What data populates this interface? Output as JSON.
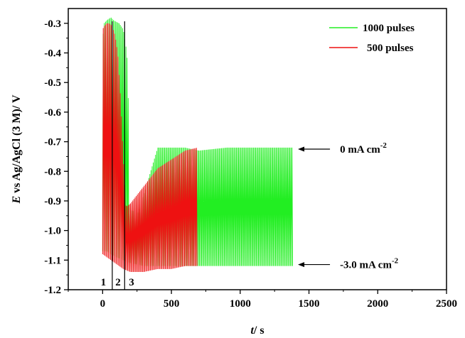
{
  "chart_data": {
    "type": "line",
    "xlabel_italic": "t",
    "xlabel_rest": "/ s",
    "ylabel_italic": "E",
    "ylabel_rest": " vs Ag/AgCl (3 M)/ V",
    "xlim": [
      -250,
      2500
    ],
    "ylim": [
      -1.2,
      -0.25
    ],
    "xticks": [
      0,
      500,
      1000,
      1500,
      2000,
      2500
    ],
    "yticks": [
      -0.3,
      -0.4,
      -0.5,
      -0.6,
      -0.7,
      -0.8,
      -0.9,
      -1.0,
      -1.1,
      -1.2
    ],
    "ytick_labels": [
      "-0.3",
      "-0.4",
      "-0.5",
      "-0.6",
      "-0.7",
      "-0.8",
      "-0.9",
      "-1.0",
      "-1.1",
      "-1.2"
    ],
    "series": [
      {
        "name": "1000 pulses",
        "color": "#22ee22",
        "upper": {
          "x": [
            0,
            10,
            30,
            60,
            80,
            120,
            150,
            170,
            185,
            190,
            200,
            260,
            400,
            600,
            700,
            900,
            1100,
            1385
          ],
          "y": [
            -0.36,
            -0.3,
            -0.29,
            -0.28,
            -0.29,
            -0.3,
            -0.32,
            -0.38,
            -0.45,
            -0.92,
            -0.93,
            -0.94,
            -0.72,
            -0.72,
            -0.73,
            -0.72,
            -0.72,
            -0.72
          ]
        },
        "lower": {
          "x": [
            0,
            30,
            60,
            100,
            150,
            200,
            300,
            500,
            700,
            1000,
            1385
          ],
          "y": [
            -1.07,
            -1.07,
            -1.08,
            -1.09,
            -1.1,
            -1.11,
            -1.12,
            -1.12,
            -1.12,
            -1.12,
            -1.12
          ]
        }
      },
      {
        "name": "500 pulses",
        "color": "#ee1111",
        "upper": {
          "x": [
            0,
            10,
            30,
            50,
            70,
            90,
            110,
            130,
            150,
            170,
            200,
            300,
            400,
            500,
            600,
            690
          ],
          "y": [
            -0.32,
            -0.31,
            -0.3,
            -0.3,
            -0.31,
            -0.34,
            -0.4,
            -0.55,
            -0.75,
            -0.92,
            -0.91,
            -0.85,
            -0.79,
            -0.76,
            -0.73,
            -0.72
          ]
        },
        "lower": {
          "x": [
            0,
            30,
            60,
            90,
            120,
            150,
            200,
            300,
            400,
            500,
            600,
            690
          ],
          "y": [
            -1.08,
            -1.09,
            -1.1,
            -1.11,
            -1.12,
            -1.13,
            -1.14,
            -1.14,
            -1.13,
            -1.13,
            -1.12,
            -1.12
          ]
        }
      }
    ],
    "vertical_markers": [
      {
        "x": 70,
        "label": "1",
        "label_x": 5
      },
      {
        "x": 160,
        "label": "2",
        "label_x": 112
      },
      {
        "x": 160,
        "label": "3",
        "label_x": 210
      }
    ],
    "annotations": [
      {
        "text_main": "0 mA cm",
        "text_sup": "-2",
        "arrow_to_x": 1420,
        "y": -0.725
      },
      {
        "text_main": "-3.0 mA cm",
        "text_sup": "-2",
        "arrow_to_x": 1420,
        "y": -1.115
      }
    ],
    "legend_position": "top-right"
  }
}
